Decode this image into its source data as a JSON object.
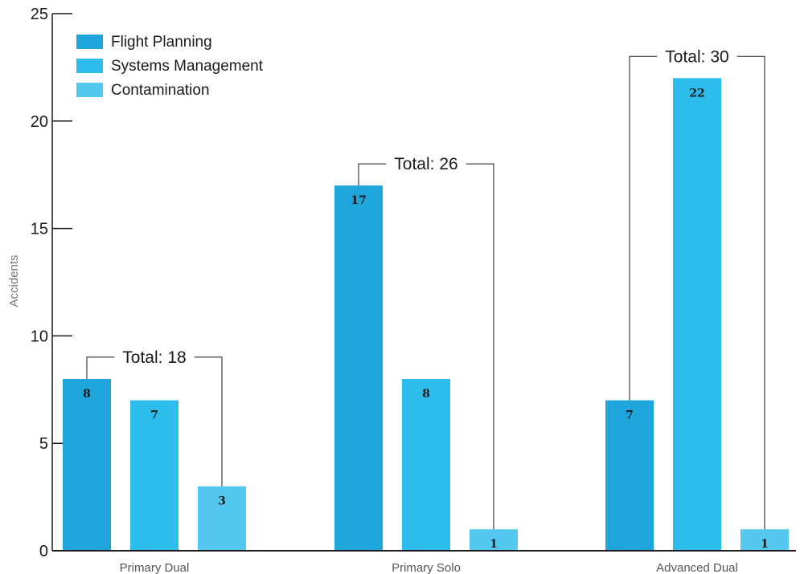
{
  "chart_data": {
    "type": "bar",
    "ylabel": "Accidents",
    "xlabel": "",
    "ylim": [
      0,
      25
    ],
    "yticks": [
      0,
      5,
      10,
      15,
      20,
      25
    ],
    "grid": false,
    "legend_position": "top-left",
    "categories": [
      "Primary Dual",
      "Primary Solo",
      "Advanced Dual"
    ],
    "series": [
      {
        "name": "Flight Planning",
        "color": "#1ea5dc",
        "values": [
          8,
          17,
          7
        ]
      },
      {
        "name": "Systems Management",
        "color": "#2cbdec",
        "values": [
          7,
          8,
          22
        ]
      },
      {
        "name": "Contamination",
        "color": "#55c8f0",
        "values": [
          3,
          1,
          1
        ]
      }
    ],
    "totals": [
      "Total: 18",
      "Total: 26",
      "Total: 30"
    ]
  }
}
